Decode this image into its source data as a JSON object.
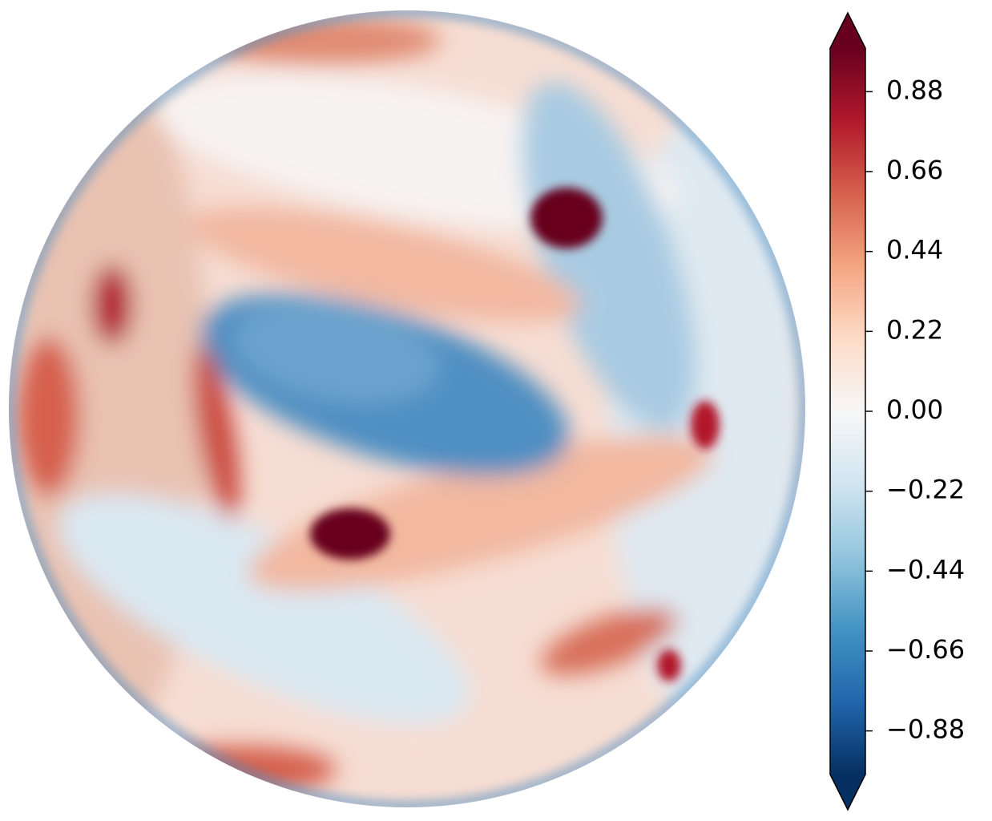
{
  "chart_data": {
    "type": "heatmap",
    "zlim": [
      -1,
      1
    ],
    "colors": [
      "#053061",
      "#2166ac",
      "#4393c3",
      "#92c5de",
      "#d1e5f0",
      "#f7f7f7",
      "#fddbc7",
      "#f4a582",
      "#d6604d",
      "#b2182b",
      "#67001f"
    ],
    "zticks": [
      {
        "value": -0.88,
        "label": "−0.88"
      },
      {
        "value": -0.66,
        "label": "−0.66"
      },
      {
        "value": -0.44,
        "label": "−0.44"
      },
      {
        "value": -0.22,
        "label": "−0.22"
      },
      {
        "value": 0,
        "label": "0.00"
      },
      {
        "value": 0.22,
        "label": "0.22"
      },
      {
        "value": 0.44,
        "label": "0.44"
      },
      {
        "value": 0.66,
        "label": "0.66"
      },
      {
        "value": 0.88,
        "label": "0.88"
      }
    ]
  }
}
